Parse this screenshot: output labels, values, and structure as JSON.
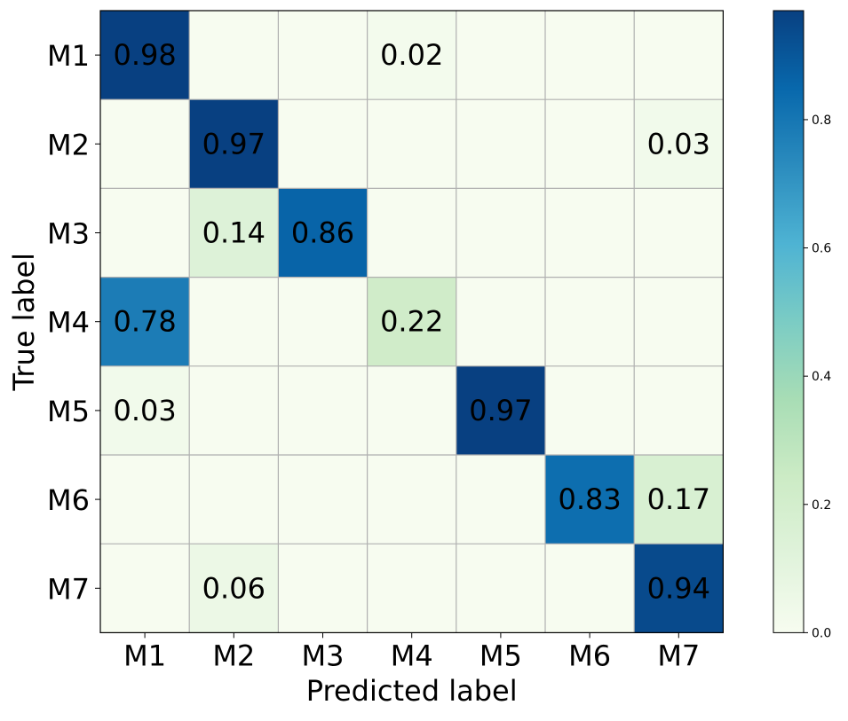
{
  "chart_data": {
    "type": "heatmap",
    "title": "",
    "xlabel": "Predicted label",
    "ylabel": "True label",
    "x_categories": [
      "M1",
      "M2",
      "M3",
      "M4",
      "M5",
      "M6",
      "M7"
    ],
    "y_categories": [
      "M1",
      "M2",
      "M3",
      "M4",
      "M5",
      "M6",
      "M7"
    ],
    "values": [
      [
        0.98,
        0,
        0,
        0.02,
        0,
        0,
        0
      ],
      [
        0,
        0.97,
        0,
        0,
        0,
        0,
        0.03
      ],
      [
        0,
        0.14,
        0.86,
        0,
        0,
        0,
        0
      ],
      [
        0.78,
        0,
        0,
        0.22,
        0,
        0,
        0
      ],
      [
        0.03,
        0,
        0,
        0,
        0.97,
        0,
        0
      ],
      [
        0,
        0,
        0,
        0,
        0,
        0.83,
        0.17
      ],
      [
        0,
        0.06,
        0,
        0,
        0,
        0,
        0.94
      ]
    ],
    "cell_labels": [
      [
        "0.98",
        "",
        "",
        "0.02",
        "",
        "",
        ""
      ],
      [
        "",
        "0.97",
        "",
        "",
        "",
        "",
        "0.03"
      ],
      [
        "",
        "0.14",
        "0.86",
        "",
        "",
        "",
        ""
      ],
      [
        "0.78",
        "",
        "",
        "0.22",
        "",
        "",
        ""
      ],
      [
        "0.03",
        "",
        "",
        "",
        "0.97",
        "",
        ""
      ],
      [
        "",
        "",
        "",
        "",
        "",
        "0.83",
        "0.17"
      ],
      [
        "",
        "0.06",
        "",
        "",
        "",
        "",
        "0.94"
      ]
    ],
    "colorbar": {
      "range": [
        0,
        0.97
      ],
      "ticks": [
        0.0,
        0.2,
        0.4,
        0.6,
        0.8
      ],
      "tick_labels": [
        "0.0",
        "0.2",
        "0.4",
        "0.6",
        "0.8"
      ]
    },
    "colormap": "GnBu",
    "colormap_stops": [
      "#f7fcf0",
      "#e0f3db",
      "#ccebc5",
      "#a8ddb5",
      "#7bccc4",
      "#4eb3d3",
      "#2b8cbe",
      "#0868ac",
      "#084081"
    ],
    "grid": true,
    "grid_color": "#b0b0b0"
  }
}
